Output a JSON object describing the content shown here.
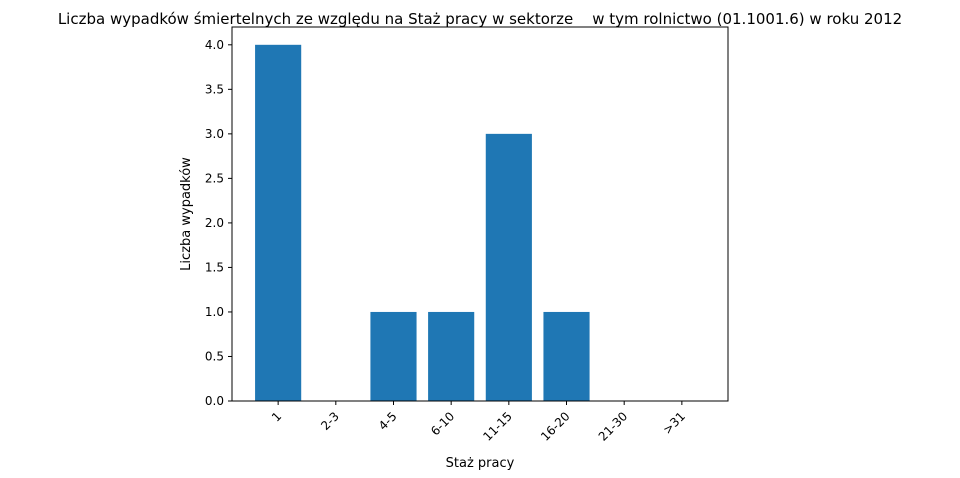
{
  "chart_data": {
    "type": "bar",
    "title": "Liczba wypadków śmiertelnych ze względu na Staż pracy w sektorze    w tym rolnictwo (01.1001.6) w roku 2012",
    "xlabel": "Staż pracy",
    "ylabel": "Liczba wypadków",
    "categories": [
      "1",
      "2-3",
      "4-5",
      "6-10",
      "11-15",
      "16-20",
      "21-30",
      ">31"
    ],
    "values": [
      4,
      0,
      1,
      1,
      3,
      1,
      0,
      0
    ],
    "ylim": [
      0,
      4.2
    ],
    "yticks": [
      "0.0",
      "0.5",
      "1.0",
      "1.5",
      "2.0",
      "2.5",
      "3.0",
      "3.5",
      "4.0"
    ],
    "grid": false,
    "legend": "none",
    "bar_color": "#1f77b4"
  }
}
